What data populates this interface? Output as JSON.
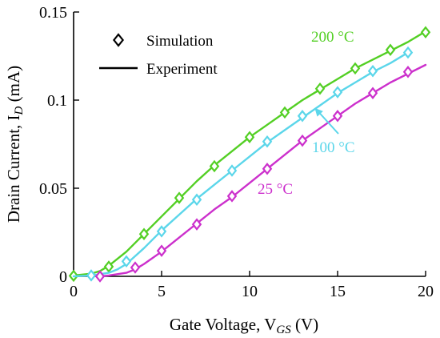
{
  "chart_data": {
    "type": "line",
    "xlabel": "Gate Voltage, V",
    "xlabel_sub": "GS",
    "xlabel_unit": " (V)",
    "ylabel": "Drain Current, I",
    "ylabel_sub": "D",
    "ylabel_unit": " (mA)",
    "xlim": [
      0,
      20
    ],
    "ylim": [
      0,
      0.15
    ],
    "xticks": [
      "0",
      "5",
      "10",
      "15",
      "20"
    ],
    "yticks": [
      "0",
      "0.05",
      "0.1",
      "0.15"
    ],
    "grid": false,
    "legend": {
      "position": "top-left",
      "entries": [
        {
          "label": "Simulation",
          "marker": "diamond-open"
        },
        {
          "label": "Experiment",
          "marker": "solid-line"
        }
      ]
    },
    "series": [
      {
        "name": "200 °C",
        "color": "#53cf24",
        "experiment": {
          "x": [
            0,
            1,
            1.5,
            2,
            3,
            4,
            5,
            6,
            7,
            8,
            9,
            10,
            11,
            12,
            13,
            14,
            15,
            16,
            17,
            18,
            19,
            20
          ],
          "y": [
            0.0005,
            0.0015,
            0.003,
            0.006,
            0.014,
            0.024,
            0.034,
            0.044,
            0.054,
            0.063,
            0.071,
            0.079,
            0.086,
            0.093,
            0.1,
            0.106,
            0.112,
            0.118,
            0.123,
            0.128,
            0.133,
            0.139
          ]
        },
        "simulation": {
          "x": [
            0,
            2,
            4,
            6,
            8,
            10,
            12,
            14,
            16,
            18,
            20
          ],
          "y": [
            0.0003,
            0.0055,
            0.024,
            0.0445,
            0.0625,
            0.079,
            0.093,
            0.1065,
            0.118,
            0.1285,
            0.1385
          ]
        }
      },
      {
        "name": "100 °C",
        "color": "#5bd6ea",
        "experiment": {
          "x": [
            0,
            1,
            2,
            2.5,
            3,
            4,
            5,
            6,
            7,
            8,
            9,
            10,
            11,
            12,
            13,
            14,
            15,
            16,
            17,
            18,
            19
          ],
          "y": [
            0,
            0.0005,
            0.002,
            0.004,
            0.007,
            0.016,
            0.026,
            0.035,
            0.044,
            0.052,
            0.06,
            0.068,
            0.076,
            0.083,
            0.09,
            0.097,
            0.104,
            0.11,
            0.116,
            0.121,
            0.127
          ]
        },
        "simulation": {
          "x": [
            1,
            3,
            5,
            7,
            9,
            11,
            13,
            15,
            17,
            19
          ],
          "y": [
            0.0005,
            0.0085,
            0.0255,
            0.0435,
            0.06,
            0.0765,
            0.091,
            0.1045,
            0.1165,
            0.127
          ]
        }
      },
      {
        "name": "25 °C",
        "color": "#cc30cc",
        "experiment": {
          "x": [
            1.5,
            2,
            3,
            3.5,
            4,
            5,
            6,
            7,
            8,
            9,
            10,
            11,
            12,
            13,
            14,
            15,
            16,
            17,
            18,
            19,
            20
          ],
          "y": [
            0,
            0.0005,
            0.002,
            0.004,
            0.007,
            0.014,
            0.022,
            0.03,
            0.038,
            0.045,
            0.053,
            0.061,
            0.069,
            0.077,
            0.084,
            0.091,
            0.098,
            0.104,
            0.11,
            0.115,
            0.12
          ]
        },
        "simulation": {
          "x": [
            1.5,
            3.5,
            5,
            7,
            9,
            11,
            13,
            15,
            17,
            19
          ],
          "y": [
            0,
            0.005,
            0.0145,
            0.0295,
            0.0455,
            0.061,
            0.077,
            0.091,
            0.104,
            0.116
          ]
        }
      }
    ],
    "annotations": [
      {
        "text": "200 °C",
        "series": "200 °C",
        "arrow": false
      },
      {
        "text": "100 °C",
        "series": "100 °C",
        "arrow": true,
        "arrow_target": {
          "x": 13.7,
          "y": 0.0955
        }
      },
      {
        "text": "25 °C",
        "series": "25 °C",
        "arrow": false
      }
    ]
  }
}
